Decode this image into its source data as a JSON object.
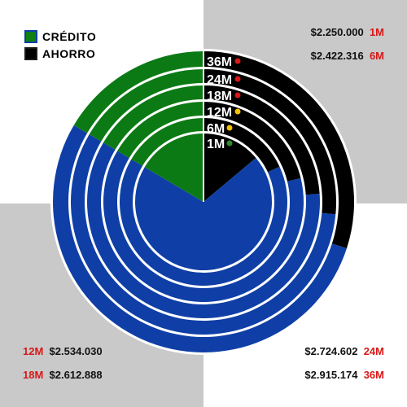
{
  "colors": {
    "credit": "#0f3fa6",
    "saving": "#000000",
    "legend_credit_inner": "#128012",
    "background_light": "#ffffff",
    "background_dark": "#c9c9c9",
    "separator": "#ffffff",
    "label_text": "#ffffff",
    "annotation_period": "#d81818",
    "annotation_value": "#111111"
  },
  "legend": [
    {
      "label": "CRÉDITO",
      "color": "#0f3fa6",
      "inner": "#128012"
    },
    {
      "label": "AHORRO",
      "color": "#000000",
      "inner": "#000000"
    }
  ],
  "chart_data": {
    "type": "pie",
    "title": "",
    "rings_inner_to_outer": [
      "1M",
      "6M",
      "12M",
      "18M",
      "24M",
      "36M"
    ],
    "series": [
      {
        "name": "1M",
        "credit_percent": 86.1,
        "saving_percent": 13.9,
        "dot_color": "#2e8b2e"
      },
      {
        "name": "6M",
        "credit_percent": 81.9,
        "saving_percent": 18.1,
        "dot_color": "#f2c200"
      },
      {
        "name": "12M",
        "credit_percent": 78.8,
        "saving_percent": 21.2,
        "dot_color": "#f2c200"
      },
      {
        "name": "18M",
        "credit_percent": 76.1,
        "saving_percent": 23.9,
        "dot_color": "#d81818"
      },
      {
        "name": "24M",
        "credit_percent": 73.5,
        "saving_percent": 26.5,
        "dot_color": "#d81818"
      },
      {
        "name": "36M",
        "credit_percent": 70.0,
        "saving_percent": 30.0,
        "dot_color": "#d81818"
      }
    ],
    "uncovered_sector_percent": 16.5,
    "uncovered_color": "#0c7a14"
  },
  "annotations": {
    "top_right": [
      {
        "value": "$2.250.000",
        "period": "1M"
      },
      {
        "value": "$2.422.316",
        "period": "6M"
      }
    ],
    "bottom_left": [
      {
        "period": "12M",
        "value": "$2.534.030"
      },
      {
        "period": "18M",
        "value": "$2.612.888"
      }
    ],
    "bottom_right": [
      {
        "value": "$2.724.602",
        "period": "24M"
      },
      {
        "value": "$2.915.174",
        "period": "36M"
      }
    ]
  }
}
